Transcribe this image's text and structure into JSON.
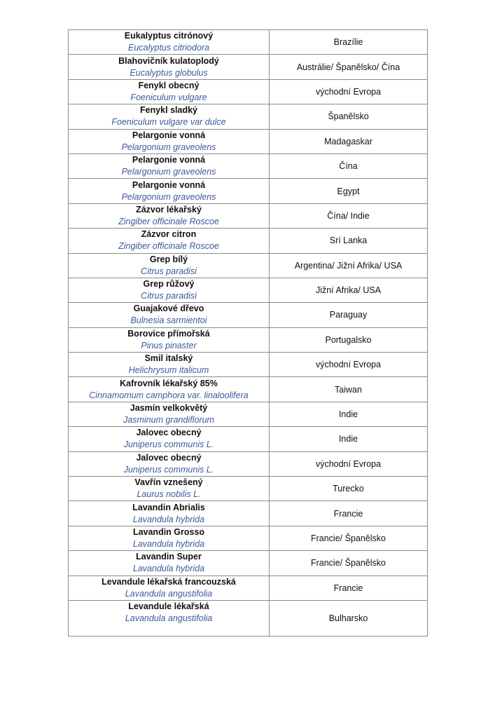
{
  "rows": [
    {
      "name": "Eukalyptus citrónový",
      "latin": "Eucalyptus citriodora",
      "origin": "Brazílie"
    },
    {
      "name": "Blahovičník kulatoplodý",
      "latin": "Eucalyptus globulus",
      "origin": "Austrálie/ Španělsko/ Čína"
    },
    {
      "name": "Fenykl obecný",
      "latin": "Foeniculum vulgare",
      "origin": "východní Evropa"
    },
    {
      "name": "Fenykl sladký",
      "latin": "Foeniculum vulgare var dulce",
      "origin": "Španělsko"
    },
    {
      "name": "Pelargonie vonná",
      "latin": "Pelargonium graveolens",
      "origin": "Madagaskar"
    },
    {
      "name": "Pelargonie vonná",
      "latin": "Pelargonium graveolens",
      "origin": "Čína"
    },
    {
      "name": "Pelargonie vonná",
      "latin": "Pelargonium graveolens",
      "origin": "Egypt"
    },
    {
      "name": "Zázvor lékařský",
      "latin": "Zingiber officinale Roscoe",
      "origin": "Čína/ Indie"
    },
    {
      "name": "Zázvor citron",
      "latin": "Zingiber officinale Roscoe",
      "origin": "Srí Lanka"
    },
    {
      "name": "Grep bílý",
      "latin": "Citrus paradisi",
      "origin": "Argentina/ Jižní Afrika/ USA"
    },
    {
      "name": "Grep růžový",
      "latin": "Citrus paradisi",
      "origin": "Jižní Afrika/ USA"
    },
    {
      "name": "Guajakové dřevo",
      "latin": "Bulnesia sarmientoi",
      "origin": "Paraguay"
    },
    {
      "name": "Borovice přímořská",
      "latin": "Pinus pinaster",
      "origin": "Portugalsko"
    },
    {
      "name": "Smil italský",
      "latin": "Helichrysum italicum",
      "origin": "východní Evropa"
    },
    {
      "name": "Kafrovník lékařský 85%",
      "latin": "Cinnamomum camphora var. linaloolifera",
      "origin": "Taiwan"
    },
    {
      "name": "Jasmín velkokvětý",
      "latin": "Jasminum grandiflorum",
      "origin": "Indie"
    },
    {
      "name": "Jalovec obecný",
      "latin": "Juniperus communis L.",
      "origin": "Indie"
    },
    {
      "name": "Jalovec obecný",
      "latin": "Juniperus communis L.",
      "origin": "východní Evropa"
    },
    {
      "name": "Vavřín vznešený",
      "latin": "Laurus nobilis L.",
      "origin": "Turecko"
    },
    {
      "name": "Lavandin Abrialis",
      "latin": "Lavandula hybrida",
      "origin": "Francie"
    },
    {
      "name": "Lavandin Grosso",
      "latin": "Lavandula hybrida",
      "origin": "Francie/ Španělsko"
    },
    {
      "name": "Lavandin Super",
      "latin": "Lavandula hybrida",
      "origin": "Francie/ Španělsko"
    },
    {
      "name": "Levandule lékařská francouzská",
      "latin": "Lavandula angustifolia",
      "origin": "Francie"
    },
    {
      "name": "Levandule lékařská",
      "latin": "Lavandula angustifolia",
      "origin": "Bulharsko"
    }
  ]
}
